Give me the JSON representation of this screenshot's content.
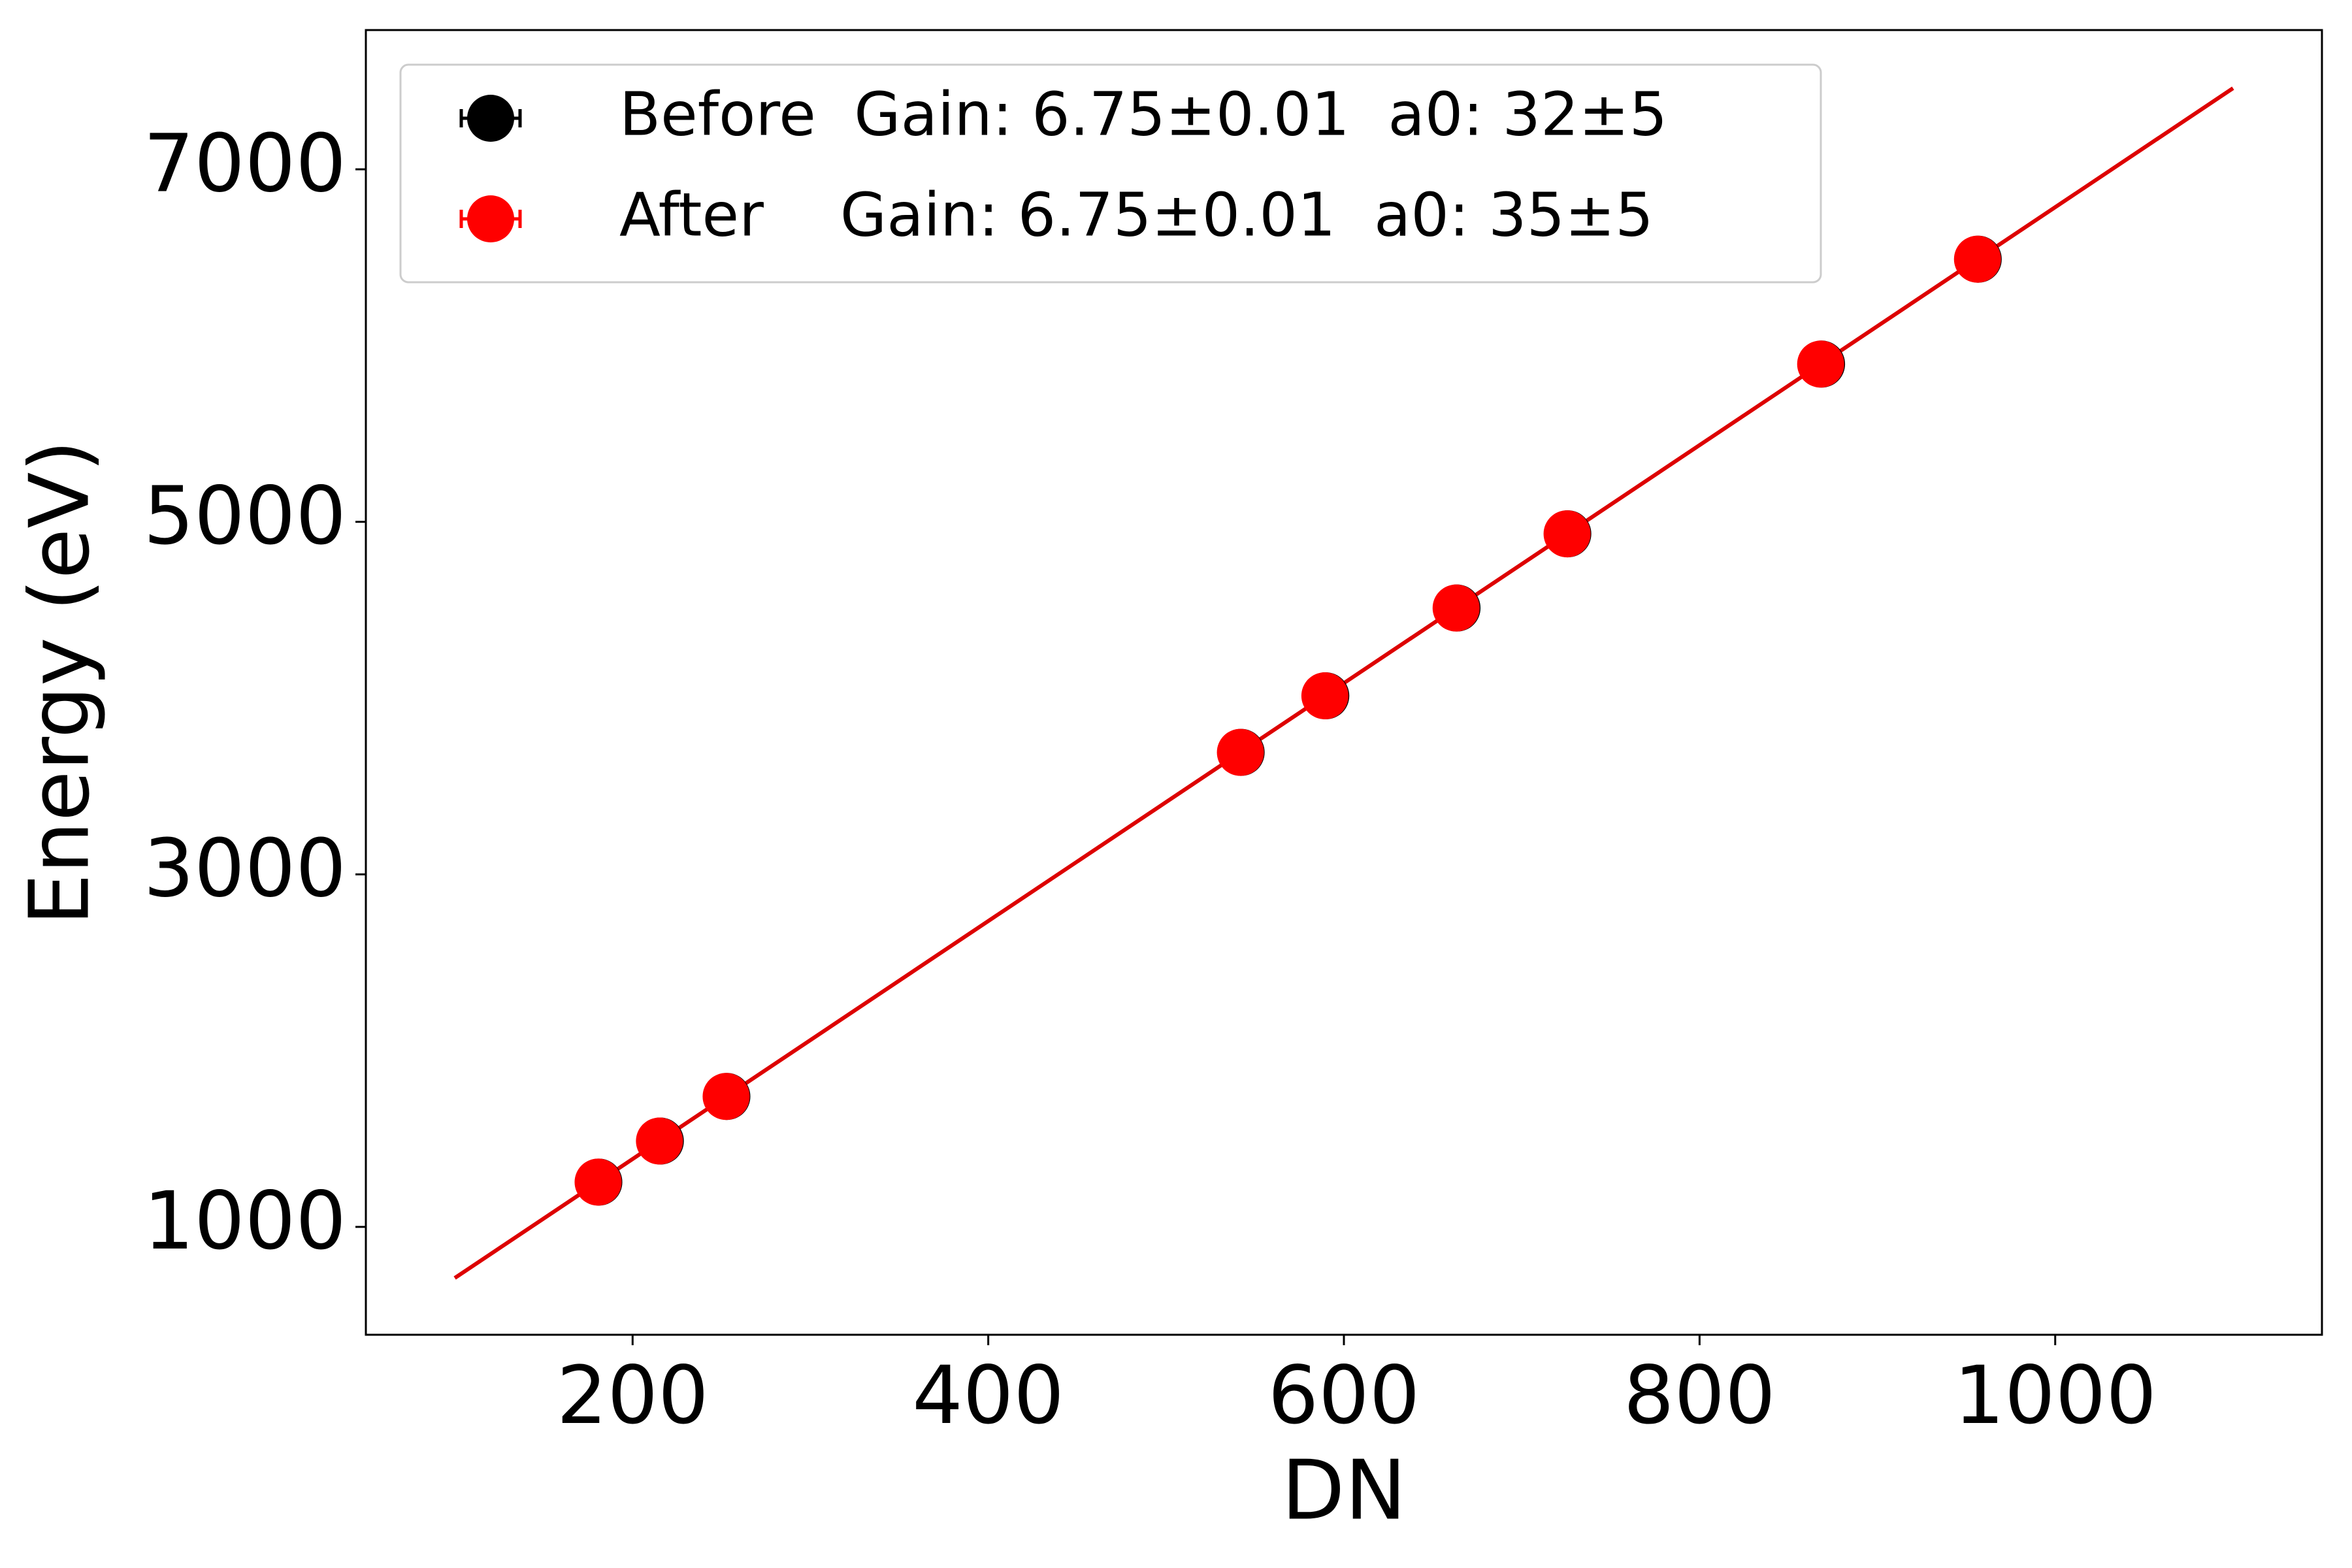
{
  "chart_data": {
    "type": "scatter",
    "xlabel": "DN",
    "ylabel": "Energy (eV)",
    "xlim": [
      50,
      1150
    ],
    "ylim": [
      388,
      7790
    ],
    "xticks": [
      200,
      400,
      600,
      800,
      1000
    ],
    "yticks": [
      1000,
      3000,
      5000,
      7000
    ],
    "grid": false,
    "legend": "upper left",
    "series": [
      {
        "name": "Before  Gain: 6.75±0.01  a0: 32±5",
        "color": "#000000",
        "x": [
          181.0,
          215.6,
          253.0,
          542.2,
          589.8,
          663.6,
          725.9,
          868.6,
          956.7
        ],
        "values": [
          1254,
          1487,
          1740,
          3692,
          4013,
          4511,
          4932,
          5895,
          6490
        ]
      },
      {
        "name": "After    Gain: 6.75±0.01  a0: 35±5",
        "color": "#ff0000",
        "x": [
          180.6,
          215.1,
          252.6,
          541.8,
          589.3,
          663.1,
          725.5,
          868.1,
          956.3
        ],
        "values": [
          1254,
          1487,
          1740,
          3692,
          4013,
          4511,
          4932,
          5895,
          6490
        ]
      }
    ],
    "fit": {
      "color": "#dd0000",
      "x": [
        100,
        1100
      ],
      "values": [
        710,
        7460
      ]
    }
  }
}
